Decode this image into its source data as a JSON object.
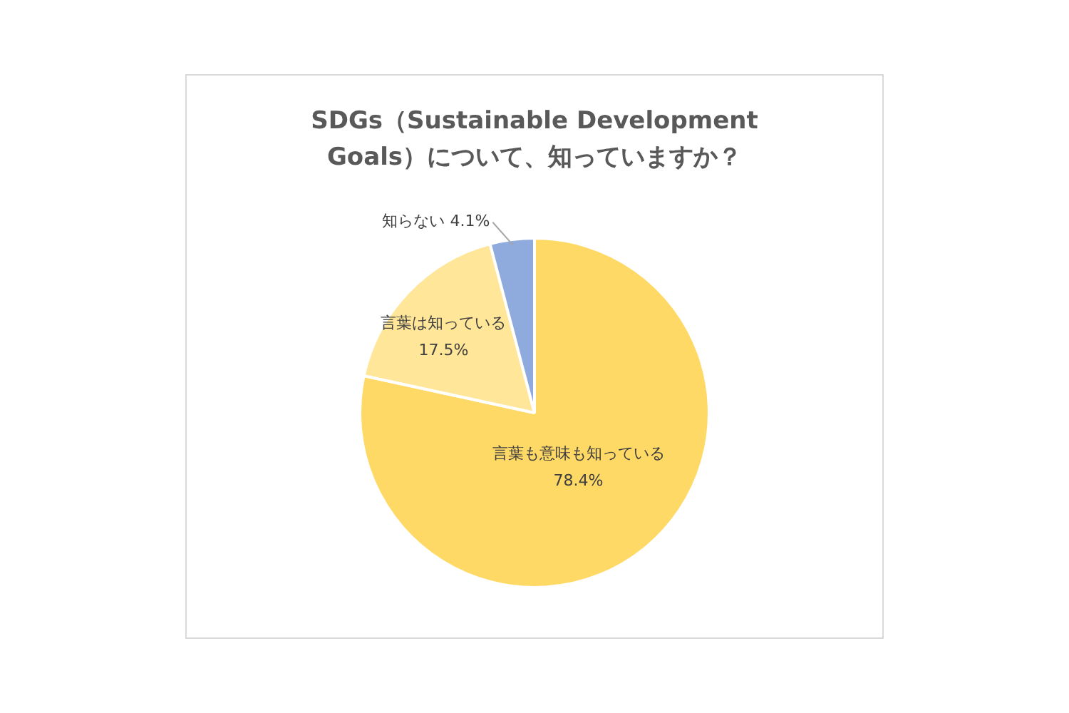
{
  "chart_data": {
    "type": "pie",
    "title": "SDGs（Sustainable Development Goals）について、知っていますか？",
    "categories": [
      "言葉も意味も知っている",
      "言葉は知っている",
      "知らない"
    ],
    "values": [
      78.4,
      17.5,
      4.1
    ],
    "colors": [
      "#ffd966",
      "#ffe699",
      "#8faadc"
    ],
    "value_labels": [
      "78.4%",
      "17.5%",
      "4.1%"
    ],
    "legend": false
  }
}
